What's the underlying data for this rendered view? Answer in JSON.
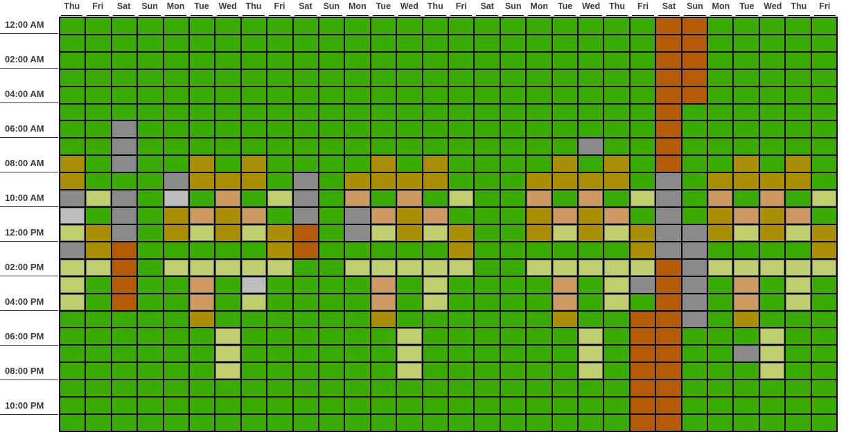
{
  "chart_data": {
    "type": "heatmap",
    "description": "Calendar heat chart: hourly cells (24 rows) across 30 day columns",
    "x_labels": [
      "Thu",
      "Fri",
      "Sat",
      "Sun",
      "Mon",
      "Tue",
      "Wed",
      "Thu",
      "Fri",
      "Sat",
      "Sun",
      "Mon",
      "Tue",
      "Wed",
      "Thu",
      "Fri",
      "Sat",
      "Sun",
      "Mon",
      "Tue",
      "Wed",
      "Thu",
      "Fri",
      "Sat",
      "Sun",
      "Mon",
      "Tue",
      "Wed",
      "Thu",
      "Fri"
    ],
    "y_labels": [
      "12:00 AM",
      "02:00 AM",
      "04:00 AM",
      "06:00 AM",
      "08:00 AM",
      "10:00 AM",
      "12:00 PM",
      "02:00 PM",
      "04:00 PM",
      "06:00 PM",
      "08:00 PM",
      "10:00 PM"
    ],
    "rows_per_y_label": 2,
    "n_rows": 24,
    "n_cols": 30,
    "cell_colors": {
      "G": "#3aab01",
      "D": "#aa8e03",
      "L": "#c0ce6e",
      "T": "#ce9a62",
      "O": "#b45b06",
      "X": "#8a8a8a",
      "S": "#bebebe"
    },
    "cell_color_names": {
      "G": "green",
      "D": "dark-yellow",
      "L": "light-yellow-green",
      "T": "tan",
      "O": "dark-orange",
      "X": "gray",
      "S": "silver"
    },
    "grid_line_color": "#000000",
    "label_color": "#3b3b3b",
    "grid": [
      "GGGGGGGGGGGGGGGGGGGGGGGOOGGGGG",
      "GGGGGGGGGGGGGGGGGGGGGGGOOGGGGG",
      "GGGGGGGGGGGGGGGGGGGGGGGOOGGGGG",
      "GGGGGGGGGGGGGGGGGGGGGGGOOGGGGG",
      "GGGGGGGGGGGGGGGGGGGGGGGOOGGGGG",
      "GGGGGGGGGGGGGGGGGGGGGGGOGGGGGG",
      "GGXGGGGGGGGGGGGGGGGGGGGOGGGGGG",
      "GGXGGGGGGGGGGGGGGGGGXGGOGGGGGG",
      "DGXGGDGDGGGGDGDGGGGDGDGOGGDGDG",
      "DGGGXDDDGXGDDDDGGGDDDDGXGDDDDG",
      "XLXGSGTGLXGTGTGLGGTGTGLXGTGTGL",
      "SGXGDTDTGXGXTDTGGGDTDTGXGDTDTG",
      "LDXGDLDLDOGXLDLDGGDLDLDXXDLDLD",
      "XDOGGGGGDOGGGGGDGGGGGGDXXGGGGD",
      "LLOGLLLLLGGLLLLLGGLLLLLOXLLLLL",
      "LGOGGTGSGGGGTGLGGGGTGLXOXGTGLG",
      "LGOGGTGLGGGGTGLGGGGTGLGOXGTGLG",
      "GGGGGDGGGGGGDGGGGGGDGGOOXGDGGG",
      "GGGGGGLGGGGGGLGGGGGGLGOOGGGLGG",
      "GGGGGGLGGGGGGLGGGGGGLGOOGGXLGG",
      "GGGGGGLGGGGGGLGGGGGGLGOOGGGLGG",
      "GGGGGGGGGGGGGGGGGGGGGGOOGGGGGG",
      "GGGGGGGGGGGGGGGGGGGGGGOOGGGGGG",
      "GGGGGGGGGGGGGGGGGGGGGGOOGGGGGG"
    ]
  }
}
